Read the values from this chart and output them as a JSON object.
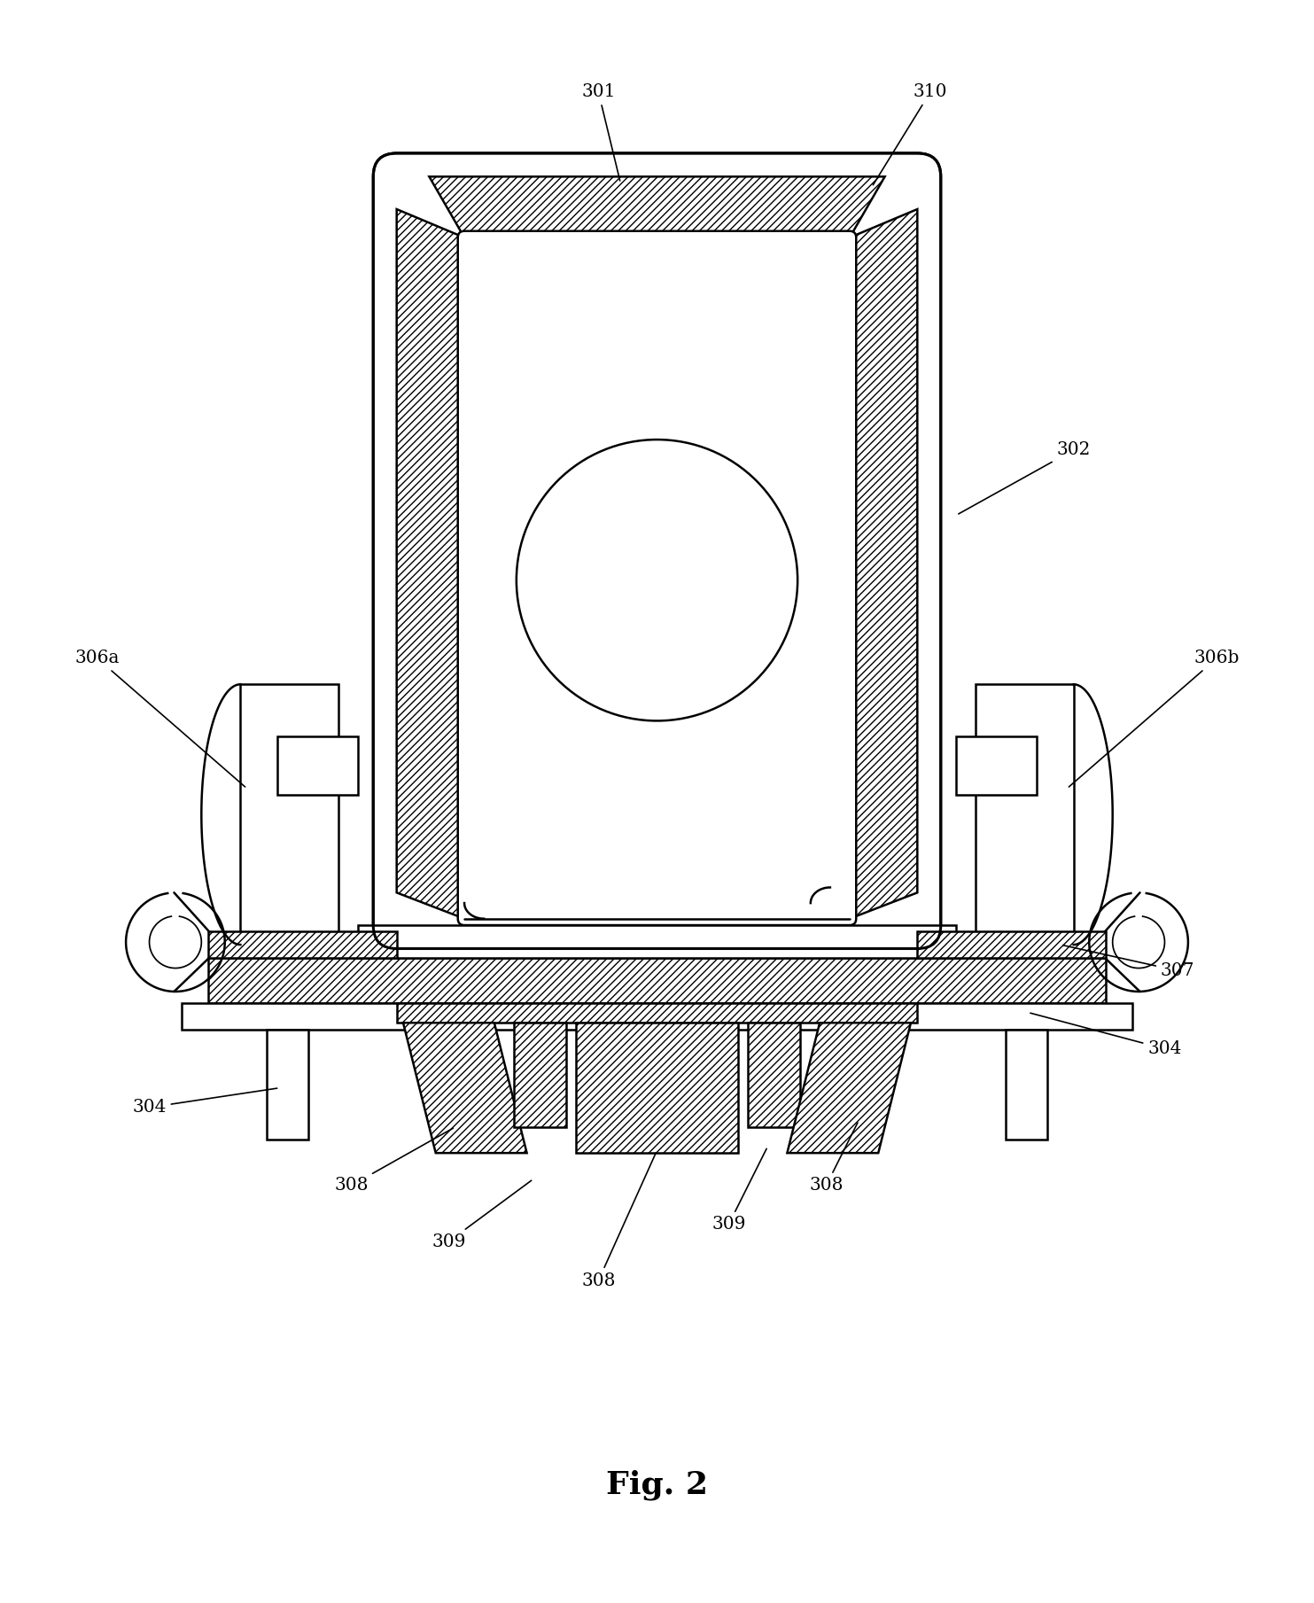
{
  "title": "Fig. 2",
  "background_color": "#ffffff",
  "fig_width": 14.83,
  "fig_height": 18.09,
  "dpi": 100
}
